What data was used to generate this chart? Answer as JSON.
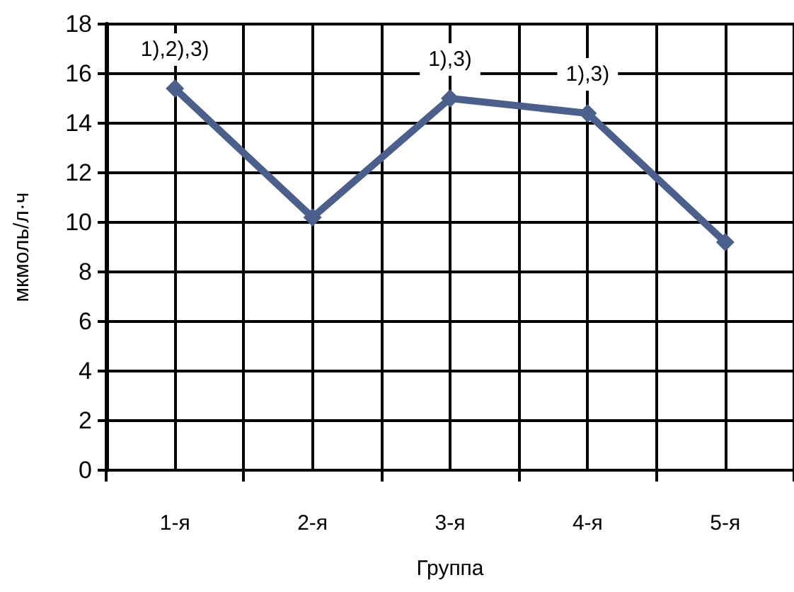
{
  "chart_data": {
    "type": "line",
    "xlabel": "Группа",
    "ylabel": "мкмоль/л·ч",
    "categories": [
      "1-я",
      "2-я",
      "3-я",
      "4-я",
      "5-я"
    ],
    "series": [
      {
        "color": "#4a5f8c",
        "values": [
          15.4,
          10.2,
          15.0,
          14.4,
          9.2
        ]
      }
    ],
    "ylim": [
      0,
      18
    ],
    "yticks": [
      0,
      2,
      4,
      6,
      8,
      10,
      12,
      14,
      16,
      18
    ],
    "annotations": [
      {
        "text": "1),2),3)",
        "x": "1-я",
        "y": 15.4
      },
      {
        "text": "1),3)",
        "x": "3-я",
        "y": 15.0
      },
      {
        "text": "1),3)",
        "x": "4-я",
        "y": 14.4
      }
    ],
    "grid": true,
    "marker": "diamond",
    "line_style": "solid"
  }
}
